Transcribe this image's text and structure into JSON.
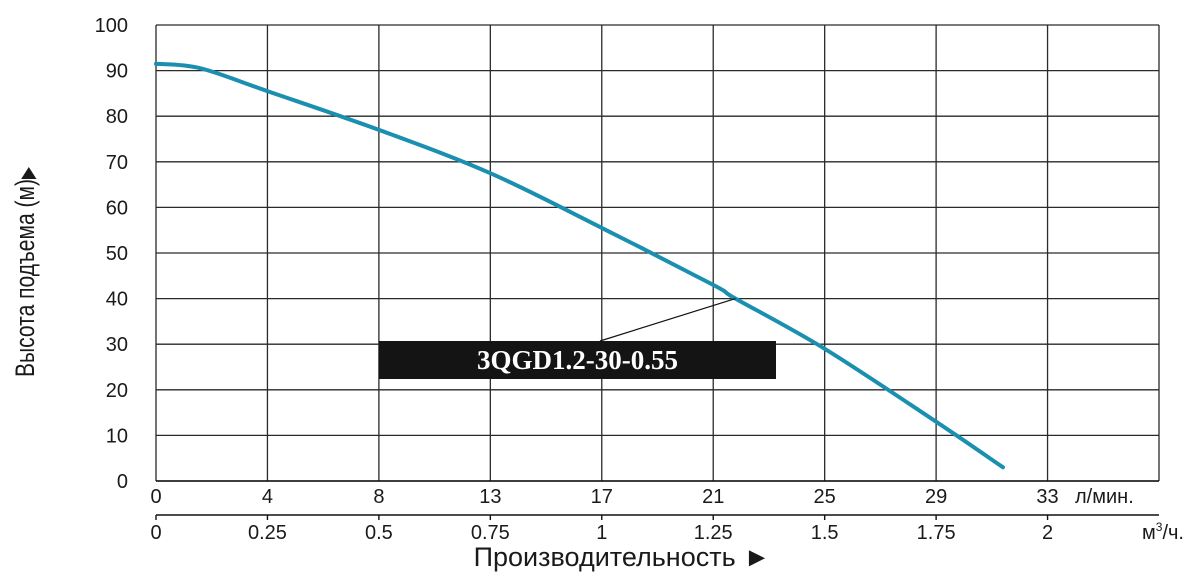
{
  "chart_data": {
    "type": "line",
    "title": "",
    "ylabel": "Высота подъема (м)",
    "ylabel_arrow": "▶",
    "xlabel": "Производительность",
    "xlabel_arrow": "►",
    "ylim": [
      0,
      100
    ],
    "y_ticks": [
      "0",
      "10",
      "20",
      "30",
      "40",
      "50",
      "60",
      "70",
      "80",
      "90",
      "100"
    ],
    "x_axis_primary": {
      "unit": "л/мин.",
      "ticks": [
        "0",
        "4",
        "8",
        "13",
        "17",
        "21",
        "25",
        "29",
        "33"
      ]
    },
    "x_axis_secondary": {
      "unit": "м³/ч.",
      "unit_base": "м",
      "unit_sup": "3",
      "unit_tail": "/ч.",
      "ticks": [
        "0",
        "0.25",
        "0.5",
        "0.75",
        "1",
        "1.25",
        "1.5",
        "1.75",
        "2"
      ]
    },
    "grid": true,
    "series": [
      {
        "name": "3QGD1.2-30-0.55",
        "color": "#1a8fb0",
        "x_unit": "м³/ч.",
        "x": [
          0,
          0.1,
          0.25,
          0.5,
          0.75,
          1.0,
          1.25,
          1.3,
          1.5,
          1.75,
          1.9
        ],
        "y": [
          91.5,
          90.5,
          85.5,
          77,
          67.5,
          55.5,
          43,
          40,
          29,
          13,
          3
        ]
      }
    ],
    "annotation": {
      "text": "3QGD1.2-30-0.55",
      "points_to": {
        "x": 1.3,
        "y": 40
      }
    }
  }
}
